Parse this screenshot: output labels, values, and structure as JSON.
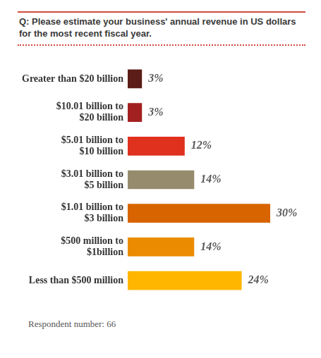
{
  "chart_data": {
    "type": "bar",
    "orientation": "horizontal",
    "title": "Q: Please estimate your business' annual revenue in US dollars for the most recent fiscal year.",
    "footnote": "Respondent number: 66",
    "categories": [
      "Greater than $20 billion",
      "$10.01 billion to $20 billion",
      "$5.01 billion to $10 billion",
      "$3.01 billion to $5 billion",
      "$1.01 billion to $3 billion",
      "$500 million to $1billion",
      "Less than $500 million"
    ],
    "values": [
      3,
      3,
      12,
      14,
      30,
      14,
      24
    ],
    "value_labels": [
      "3%",
      "3%",
      "12%",
      "14%",
      "30%",
      "14%",
      "24%"
    ],
    "colors": [
      "#5b1d17",
      "#a32020",
      "#e0301e",
      "#968c6d",
      "#d86400",
      "#eb8c00",
      "#ffb600"
    ],
    "data_labels": true,
    "tick_labels": "y",
    "grid": false
  }
}
